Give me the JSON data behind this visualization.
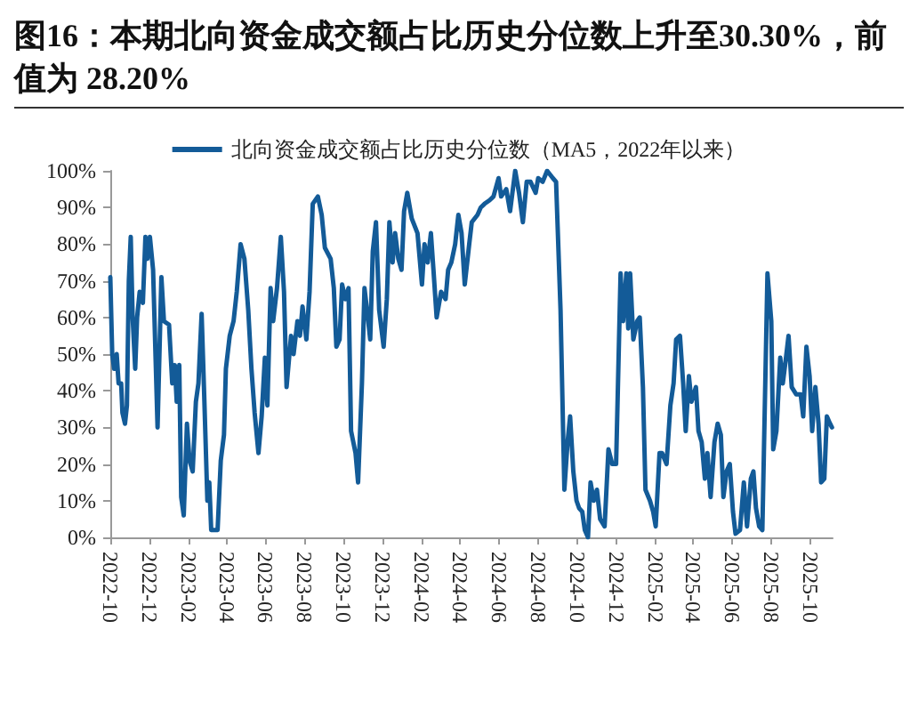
{
  "chart_data": {
    "type": "line",
    "title": "图16：本期北向资金成交额占比历史分位数上升至30.30%，前值为 28.20%",
    "x": [
      "2022-10-01",
      "2022-10-04",
      "2022-10-07",
      "2022-10-11",
      "2022-10-14",
      "2022-10-18",
      "2022-10-20",
      "2022-10-24",
      "2022-10-27",
      "2022-10-30",
      "2022-11-02",
      "2022-11-05",
      "2022-11-09",
      "2022-11-12",
      "2022-11-16",
      "2022-11-21",
      "2022-11-25",
      "2022-11-28",
      "2022-12-02",
      "2022-12-07",
      "2022-12-14",
      "2022-12-20",
      "2022-12-24",
      "2023-01-01",
      "2023-01-06",
      "2023-01-10",
      "2023-01-13",
      "2023-01-17",
      "2023-01-20",
      "2023-01-24",
      "2023-01-29",
      "2023-02-02",
      "2023-02-07",
      "2023-02-12",
      "2023-02-16",
      "2023-02-21",
      "2023-02-25",
      "2023-03-02",
      "2023-03-05",
      "2023-03-08",
      "2023-03-18",
      "2023-03-23",
      "2023-03-28",
      "2023-03-31",
      "2023-04-06",
      "2023-04-12",
      "2023-04-17",
      "2023-04-23",
      "2023-04-29",
      "2023-05-05",
      "2023-05-10",
      "2023-05-15",
      "2023-05-21",
      "2023-05-26",
      "2023-05-31",
      "2023-06-04",
      "2023-06-09",
      "2023-06-13",
      "2023-06-19",
      "2023-06-25",
      "2023-06-30",
      "2023-07-04",
      "2023-07-11",
      "2023-07-15",
      "2023-07-21",
      "2023-07-25",
      "2023-07-29",
      "2023-08-04",
      "2023-08-09",
      "2023-08-14",
      "2023-08-22",
      "2023-08-28",
      "2023-09-02",
      "2023-09-11",
      "2023-09-16",
      "2023-09-20",
      "2023-09-25",
      "2023-09-29",
      "2023-10-04",
      "2023-10-09",
      "2023-10-13",
      "2023-10-20",
      "2023-10-24",
      "2023-10-30",
      "2023-11-03",
      "2023-11-07",
      "2023-11-12",
      "2023-11-16",
      "2023-11-21",
      "2023-11-26",
      "2023-12-03",
      "2023-12-08",
      "2023-12-12",
      "2023-12-17",
      "2023-12-21",
      "2023-12-26",
      "2023-12-31",
      "2024-01-04",
      "2024-01-09",
      "2024-01-16",
      "2024-01-25",
      "2024-02-01",
      "2024-02-05",
      "2024-02-10",
      "2024-02-15",
      "2024-02-19",
      "2024-02-24",
      "2024-03-02",
      "2024-03-09",
      "2024-03-13",
      "2024-03-18",
      "2024-03-24",
      "2024-03-29",
      "2024-04-03",
      "2024-04-08",
      "2024-04-15",
      "2024-04-19",
      "2024-04-28",
      "2024-05-03",
      "2024-05-09",
      "2024-05-17",
      "2024-05-23",
      "2024-05-31",
      "2024-06-04",
      "2024-06-12",
      "2024-06-18",
      "2024-06-26",
      "2024-07-02",
      "2024-07-08",
      "2024-07-14",
      "2024-07-20",
      "2024-07-28",
      "2024-08-01",
      "2024-08-08",
      "2024-08-15",
      "2024-08-24",
      "2024-08-29",
      "2024-09-05",
      "2024-09-11",
      "2024-09-16",
      "2024-09-20",
      "2024-09-25",
      "2024-09-30",
      "2024-10-04",
      "2024-10-09",
      "2024-10-13",
      "2024-10-18",
      "2024-10-22",
      "2024-10-27",
      "2024-11-01",
      "2024-11-06",
      "2024-11-13",
      "2024-11-19",
      "2024-11-25",
      "2024-12-01",
      "2024-12-08",
      "2024-12-12",
      "2024-12-17",
      "2024-12-20",
      "2024-12-23",
      "2024-12-28",
      "2025-01-03",
      "2025-01-07",
      "2025-01-12",
      "2025-01-16",
      "2025-01-23",
      "2025-01-28",
      "2025-02-01",
      "2025-02-07",
      "2025-02-11",
      "2025-02-18",
      "2025-02-24",
      "2025-03-01",
      "2025-03-05",
      "2025-03-11",
      "2025-03-16",
      "2025-03-20",
      "2025-03-25",
      "2025-03-29",
      "2025-04-05",
      "2025-04-09",
      "2025-04-14",
      "2025-04-19",
      "2025-04-23",
      "2025-04-28",
      "2025-05-04",
      "2025-05-09",
      "2025-05-14",
      "2025-05-18",
      "2025-05-23",
      "2025-05-28",
      "2025-06-02",
      "2025-06-06",
      "2025-06-13",
      "2025-06-19",
      "2025-06-24",
      "2025-06-30",
      "2025-07-04",
      "2025-07-08",
      "2025-07-13",
      "2025-07-18",
      "2025-07-26",
      "2025-08-01",
      "2025-08-04",
      "2025-08-09",
      "2025-08-15",
      "2025-08-19",
      "2025-08-24",
      "2025-08-28",
      "2025-09-02",
      "2025-09-09",
      "2025-09-16",
      "2025-09-20",
      "2025-09-25",
      "2025-09-30",
      "2025-10-04",
      "2025-10-09",
      "2025-10-14",
      "2025-10-18",
      "2025-10-23",
      "2025-10-27",
      "2025-11-01",
      "2025-11-04"
    ],
    "series": [
      {
        "name": "北向资金成交额占比历史分位数（MA5，2022年以来）",
        "color": "#135b98",
        "values": [
          71,
          50,
          46,
          50,
          42,
          42,
          34,
          31,
          36,
          70,
          82,
          60,
          46,
          60,
          67,
          64,
          82,
          76,
          82,
          73,
          30,
          71,
          59,
          58,
          42,
          47,
          37,
          47,
          11,
          6,
          31,
          21,
          18,
          37,
          42,
          61,
          39,
          10,
          15,
          2,
          2,
          21,
          28,
          46,
          55,
          59,
          67,
          80,
          76,
          62,
          46,
          34,
          23,
          33,
          49,
          36,
          68,
          59,
          68,
          82,
          67,
          41,
          55,
          50,
          59,
          55,
          63,
          54,
          67,
          91,
          93,
          88,
          79,
          76,
          68,
          52,
          54,
          69,
          65,
          68,
          29,
          23,
          15,
          42,
          68,
          62,
          54,
          78,
          86,
          62,
          52,
          65,
          86,
          75,
          83,
          76,
          73,
          89,
          94,
          87,
          83,
          69,
          80,
          75,
          83,
          73,
          60,
          67,
          65,
          73,
          75,
          80,
          88,
          83,
          69,
          80,
          86,
          88,
          90,
          91,
          92,
          93,
          98,
          93,
          95,
          89,
          100,
          94,
          86,
          97,
          97,
          94,
          98,
          97,
          100,
          98,
          97,
          62,
          13,
          26,
          33,
          18,
          10,
          8,
          7,
          2,
          0,
          15,
          10,
          13,
          5,
          3,
          24,
          20,
          20,
          72,
          59,
          72,
          57,
          72,
          54,
          59,
          60,
          41,
          13,
          10,
          7,
          3,
          23,
          23,
          20,
          36,
          42,
          54,
          55,
          42,
          29,
          44,
          37,
          41,
          29,
          26,
          16,
          23,
          11,
          26,
          31,
          28,
          11,
          18,
          20,
          7,
          1,
          2,
          15,
          3,
          16,
          18,
          8,
          3,
          2,
          72,
          59,
          24,
          29,
          49,
          42,
          49,
          55,
          41,
          39,
          39,
          33,
          52,
          44,
          29,
          41,
          31,
          15,
          16,
          33,
          31,
          30
        ]
      }
    ],
    "xlim": [
      "2022-10-01",
      "2025-11-05"
    ],
    "xticks": [
      "2022-10",
      "2022-12",
      "2023-02",
      "2023-04",
      "2023-06",
      "2023-08",
      "2023-10",
      "2023-12",
      "2024-02",
      "2024-04",
      "2024-06",
      "2024-08",
      "2024-10",
      "2024-12",
      "2025-02",
      "2025-04",
      "2025-06",
      "2025-08",
      "2025-10"
    ],
    "ylim": [
      0,
      100
    ],
    "yticks": [
      {
        "value": 0,
        "label": "0%"
      },
      {
        "value": 10,
        "label": "10%"
      },
      {
        "value": 20,
        "label": "20%"
      },
      {
        "value": 30,
        "label": "30%"
      },
      {
        "value": 40,
        "label": "40%"
      },
      {
        "value": 50,
        "label": "50%"
      },
      {
        "value": 60,
        "label": "60%"
      },
      {
        "value": 70,
        "label": "70%"
      },
      {
        "value": 80,
        "label": "80%"
      },
      {
        "value": 90,
        "label": "90%"
      },
      {
        "value": 100,
        "label": "100%"
      }
    ],
    "legend": "top",
    "marker": "none"
  }
}
